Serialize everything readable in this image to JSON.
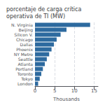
{
  "chart_data": {
    "type": "bar",
    "orientation": "horizontal",
    "title": "porcentaje de carga crítica operativa de TI (MW)",
    "categories": [
      "N. Virginia",
      "Beijing",
      "Silicon V.",
      "Chicago",
      "Dallas",
      "Phoenix",
      "NY Metro",
      "Seattle",
      "Atlanta",
      "Portland",
      "Toronto",
      "Tokyo",
      "London"
    ],
    "values": [
      14.0,
      8.0,
      6.5,
      5.5,
      4.8,
      4.2,
      3.6,
      3.0,
      2.5,
      2.0,
      1.6,
      1.2,
      0.8
    ],
    "color": "#2d6a9f",
    "xlabel": "Thousands",
    "xlim": [
      0,
      16
    ],
    "xticks": [
      0,
      5,
      10,
      15
    ],
    "grid": true
  }
}
